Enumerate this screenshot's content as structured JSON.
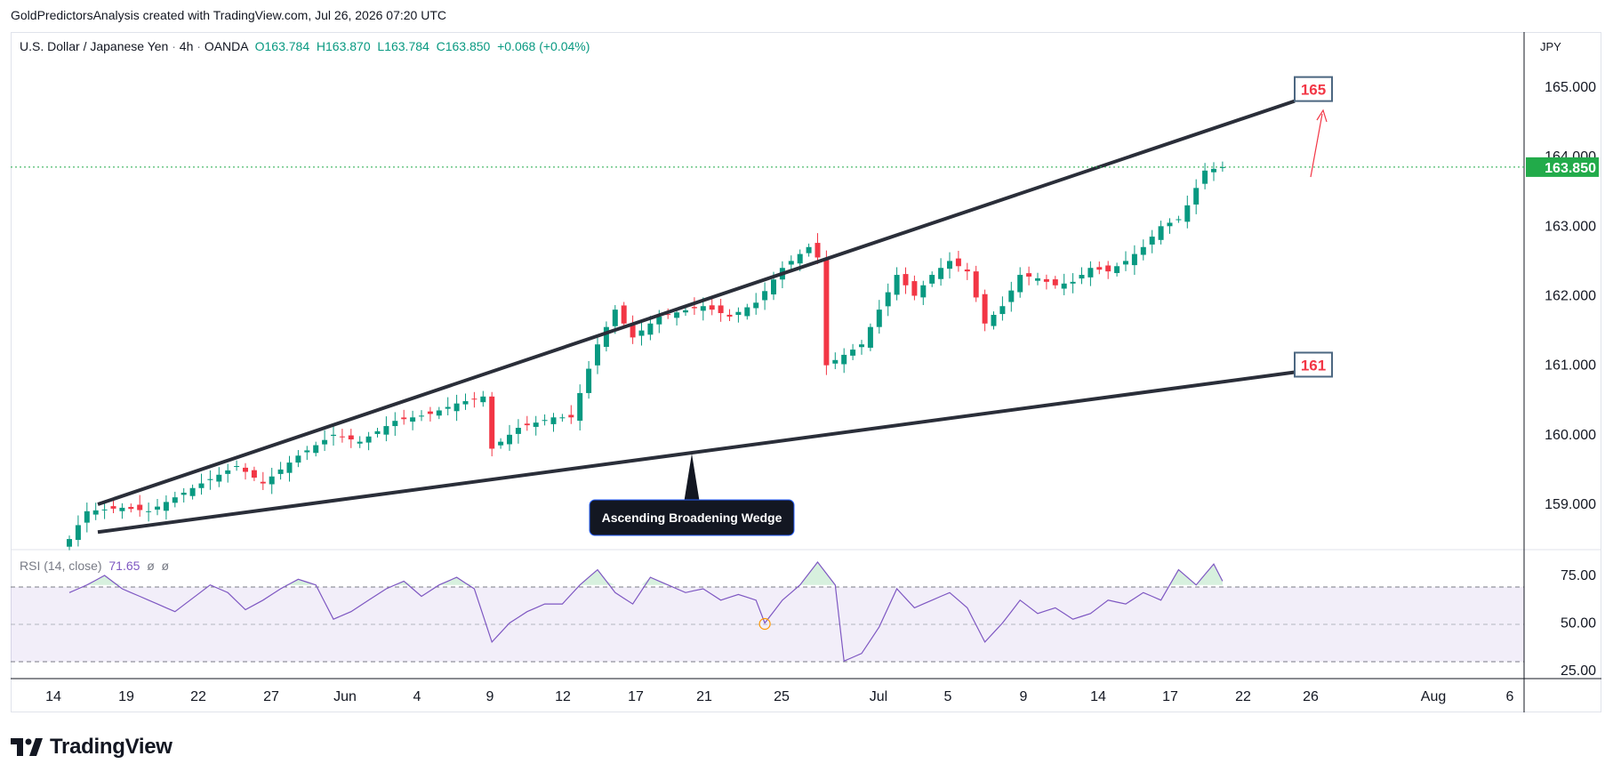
{
  "attribution": "GoldPredictorsAnalysis created with TradingView.com, Jul 26, 2026 07:20 UTC",
  "legend": {
    "symbol": "U.S. Dollar / Japanese Yen",
    "interval": "4h",
    "exchange": "OANDA",
    "open": "O163.784",
    "high": "H163.870",
    "low": "L163.784",
    "close": "C163.850",
    "change": "+0.068 (+0.04%)"
  },
  "currency": "JPY",
  "rsi": {
    "label": "RSI (14, close)",
    "value": "71.65",
    "extra1": "ø",
    "extra2": "ø"
  },
  "colors": {
    "up": "#089981",
    "down": "#f23645",
    "rsi": "#7e57c2",
    "last_price_bg": "#22ab4a",
    "target": "#f23645"
  },
  "logo_text": "TradingView",
  "chart_data": {
    "type": "candlestick",
    "symbol": "USD/JPY",
    "timeframe": "4h",
    "last_price": "163.850",
    "price_axis": {
      "ticks": [
        "165.000",
        "164.000",
        "163.000",
        "162.000",
        "161.000",
        "160.000",
        "159.000"
      ],
      "range": [
        158.4,
        165.8
      ]
    },
    "rsi_axis": {
      "ticks": [
        "75.00",
        "50.00",
        "25.00"
      ],
      "band": [
        30,
        70
      ]
    },
    "time_axis": [
      "14",
      "19",
      "22",
      "27",
      "Jun",
      "4",
      "9",
      "12",
      "17",
      "21",
      "25",
      "Jul",
      "5",
      "9",
      "14",
      "17",
      "22",
      "26",
      "Aug",
      "6"
    ],
    "wedge": {
      "name": "Ascending Broadening Wedge",
      "upper_line": [
        [
          0,
          159.0
        ],
        [
          1,
          164.8
        ]
      ],
      "lower_line": [
        [
          0,
          158.6
        ],
        [
          1,
          160.9
        ]
      ]
    },
    "targets": [
      "165",
      "161"
    ],
    "anchors": [
      [
        0,
        158.5
      ],
      [
        2,
        158.9
      ],
      [
        6,
        158.95
      ],
      [
        9,
        158.9
      ],
      [
        12,
        159.1
      ],
      [
        15,
        159.3
      ],
      [
        19,
        159.55
      ],
      [
        22,
        159.3
      ],
      [
        26,
        159.7
      ],
      [
        30,
        160.0
      ],
      [
        33,
        159.9
      ],
      [
        37,
        160.2
      ],
      [
        41,
        160.3
      ],
      [
        44,
        160.45
      ],
      [
        47,
        160.55
      ],
      [
        48,
        159.8
      ],
      [
        51,
        160.1
      ],
      [
        55,
        160.25
      ],
      [
        57,
        160.25
      ],
      [
        60,
        161.3
      ],
      [
        62,
        161.8
      ],
      [
        64,
        161.4
      ],
      [
        67,
        161.7
      ],
      [
        72,
        161.85
      ],
      [
        75,
        161.7
      ],
      [
        78,
        161.9
      ],
      [
        81,
        162.4
      ],
      [
        84,
        162.7
      ],
      [
        85,
        162.55
      ],
      [
        86,
        161.0
      ],
      [
        88,
        161.15
      ],
      [
        90,
        161.3
      ],
      [
        92,
        161.8
      ],
      [
        94,
        162.3
      ],
      [
        96,
        162.0
      ],
      [
        98,
        162.3
      ],
      [
        100,
        162.5
      ],
      [
        102,
        162.35
      ],
      [
        104,
        161.6
      ],
      [
        106,
        161.85
      ],
      [
        108,
        162.3
      ],
      [
        110,
        162.25
      ],
      [
        112,
        162.15
      ],
      [
        114,
        162.2
      ],
      [
        116,
        162.4
      ],
      [
        118,
        162.35
      ],
      [
        120,
        162.5
      ],
      [
        122,
        162.7
      ],
      [
        124,
        163.0
      ],
      [
        126,
        163.1
      ],
      [
        127,
        163.3
      ],
      [
        129,
        163.8
      ],
      [
        131,
        163.85
      ]
    ],
    "rsi_anchors": [
      [
        0,
        66
      ],
      [
        2,
        70
      ],
      [
        4,
        75
      ],
      [
        6,
        68
      ],
      [
        8,
        64
      ],
      [
        10,
        60
      ],
      [
        12,
        56
      ],
      [
        14,
        63
      ],
      [
        16,
        70
      ],
      [
        18,
        66
      ],
      [
        20,
        57
      ],
      [
        22,
        62
      ],
      [
        24,
        68
      ],
      [
        26,
        73
      ],
      [
        28,
        70
      ],
      [
        30,
        52
      ],
      [
        32,
        56
      ],
      [
        34,
        62
      ],
      [
        36,
        68
      ],
      [
        38,
        72
      ],
      [
        40,
        64
      ],
      [
        42,
        70
      ],
      [
        44,
        74
      ],
      [
        46,
        68
      ],
      [
        48,
        40
      ],
      [
        50,
        50
      ],
      [
        52,
        56
      ],
      [
        54,
        60
      ],
      [
        56,
        60
      ],
      [
        58,
        70
      ],
      [
        60,
        78
      ],
      [
        62,
        66
      ],
      [
        64,
        60
      ],
      [
        66,
        74
      ],
      [
        68,
        70
      ],
      [
        70,
        66
      ],
      [
        72,
        68
      ],
      [
        74,
        62
      ],
      [
        76,
        65
      ],
      [
        78,
        62
      ],
      [
        79,
        50
      ],
      [
        81,
        62
      ],
      [
        83,
        70
      ],
      [
        85,
        82
      ],
      [
        87,
        70
      ],
      [
        88,
        30
      ],
      [
        90,
        34
      ],
      [
        92,
        48
      ],
      [
        94,
        68
      ],
      [
        96,
        58
      ],
      [
        98,
        62
      ],
      [
        100,
        66
      ],
      [
        102,
        58
      ],
      [
        104,
        40
      ],
      [
        106,
        50
      ],
      [
        108,
        62
      ],
      [
        110,
        55
      ],
      [
        112,
        58
      ],
      [
        114,
        52
      ],
      [
        116,
        55
      ],
      [
        118,
        62
      ],
      [
        120,
        60
      ],
      [
        122,
        66
      ],
      [
        124,
        62
      ],
      [
        126,
        78
      ],
      [
        128,
        70
      ],
      [
        130,
        81
      ],
      [
        131,
        72
      ]
    ]
  }
}
